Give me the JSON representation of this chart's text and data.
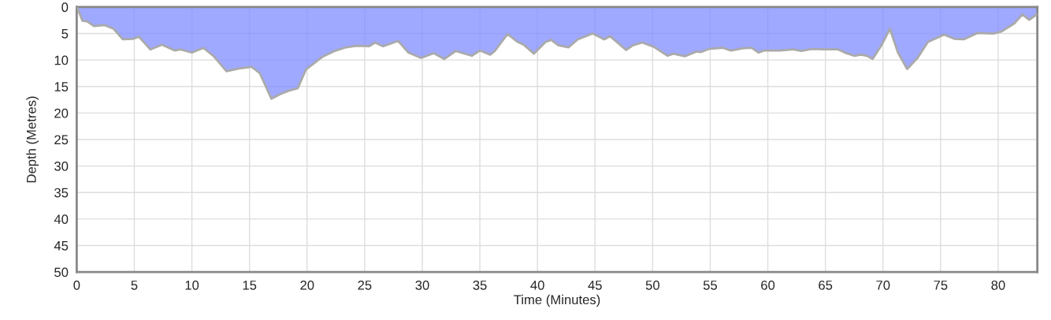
{
  "chart_data": {
    "type": "area",
    "xlabel": "Time (Minutes)",
    "ylabel": "Depth (Metres)",
    "xlim": [
      0,
      83.4
    ],
    "xticks": [
      0,
      5,
      10,
      15,
      20,
      25,
      30,
      35,
      40,
      45,
      50,
      55,
      60,
      65,
      70,
      75,
      80
    ],
    "ylim": [
      50,
      0
    ],
    "yticks": [
      0,
      5,
      10,
      15,
      20,
      25,
      30,
      35,
      40,
      45,
      50
    ],
    "grid": true,
    "legend": false,
    "series": [
      {
        "color": "#7f8cff",
        "x": [
          0,
          0.1,
          0.5,
          0.9,
          1.5,
          2.4,
          3.2,
          4.0,
          4.9,
          5.4,
          6.4,
          7.4,
          8.5,
          9.0,
          10.0,
          11.0,
          11.9,
          13.0,
          14.1,
          15.2,
          15.9,
          16.9,
          17.7,
          18.4,
          19.2,
          19.9,
          21.4,
          22.5,
          23.4,
          24.3,
          25.4,
          25.9,
          26.6,
          27.9,
          28.8,
          29.9,
          31.0,
          31.9,
          32.9,
          34.3,
          35.0,
          35.9,
          36.3,
          37.4,
          38.3,
          38.8,
          39.7,
          40.7,
          41.2,
          41.8,
          42.7,
          43.5,
          44.8,
          45.8,
          46.3,
          47.7,
          48.3,
          49.1,
          50.1,
          51.3,
          51.8,
          52.8,
          53.8,
          54.2,
          54.9,
          56.1,
          56.8,
          57.8,
          58.6,
          59.2,
          59.7,
          61.1,
          62.2,
          62.9,
          63.8,
          64.9,
          66.1,
          66.8,
          67.5,
          68.1,
          68.6,
          69.1,
          69.9,
          70.6,
          71.3,
          72.1,
          73.0,
          73.9,
          75.3,
          76.2,
          77.0,
          78.2,
          79.6,
          80.3,
          81.4,
          82.1,
          82.7,
          83.4
        ],
        "values": [
          0,
          0.4,
          2.6,
          2.7,
          3.6,
          3.4,
          4.1,
          6.1,
          6.0,
          5.6,
          8.0,
          7.1,
          8.2,
          8.0,
          8.6,
          7.7,
          9.3,
          12.1,
          11.6,
          11.3,
          12.5,
          17.3,
          16.4,
          15.8,
          15.3,
          11.8,
          9.3,
          8.2,
          7.6,
          7.3,
          7.4,
          6.7,
          7.4,
          6.4,
          8.6,
          9.6,
          8.7,
          9.8,
          8.3,
          9.2,
          8.2,
          9.0,
          8.3,
          5.1,
          6.6,
          7.1,
          8.8,
          6.6,
          6.2,
          7.2,
          7.6,
          6.1,
          5.0,
          6.1,
          5.5,
          8.1,
          7.2,
          6.7,
          7.5,
          9.2,
          8.8,
          9.3,
          8.4,
          8.5,
          7.9,
          7.7,
          8.2,
          7.8,
          7.7,
          8.6,
          8.2,
          8.2,
          8.0,
          8.3,
          7.9,
          8.0,
          8.0,
          8.7,
          9.2,
          9.0,
          9.2,
          9.8,
          7.1,
          4.1,
          8.6,
          11.7,
          9.6,
          6.6,
          5.2,
          6.0,
          6.1,
          4.9,
          5.0,
          4.6,
          3.1,
          1.4,
          2.4,
          1.3
        ]
      }
    ]
  }
}
